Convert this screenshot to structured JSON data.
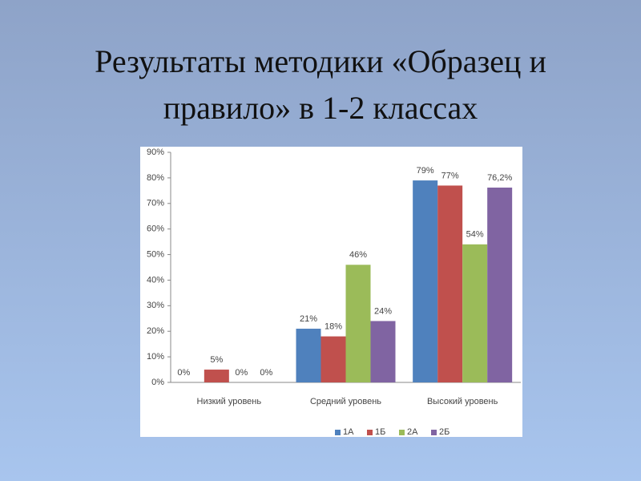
{
  "title": "Результаты методики «Образец и правило» в 1-2 классах",
  "chart_data": {
    "type": "bar",
    "categories": [
      "Низкий уровень",
      "Средний уровень",
      "Высокий уровень"
    ],
    "series": [
      {
        "name": "1А",
        "color": "#4f81bd",
        "values": [
          0,
          21,
          79
        ],
        "value_labels": [
          "0%",
          "21%",
          "79%"
        ]
      },
      {
        "name": "1Б",
        "color": "#c0504d",
        "values": [
          5,
          18,
          77
        ],
        "value_labels": [
          "5%",
          "18%",
          "77%"
        ]
      },
      {
        "name": "2А",
        "color": "#9bbb59",
        "values": [
          0,
          46,
          54
        ],
        "value_labels": [
          "0%",
          "46%",
          "54%"
        ]
      },
      {
        "name": "2Б",
        "color": "#8064a2",
        "values": [
          0,
          24,
          76.2
        ],
        "value_labels": [
          "0%",
          "24%",
          "76,2%"
        ]
      }
    ],
    "ylim": [
      0,
      90
    ],
    "yticks": [
      {
        "value": 0,
        "label": "0%"
      },
      {
        "value": 10,
        "label": "10%"
      },
      {
        "value": 20,
        "label": "20%"
      },
      {
        "value": 30,
        "label": "30%"
      },
      {
        "value": 40,
        "label": "40%"
      },
      {
        "value": 50,
        "label": "50%"
      },
      {
        "value": 60,
        "label": "60%"
      },
      {
        "value": 70,
        "label": "70%"
      },
      {
        "value": 80,
        "label": "80%"
      },
      {
        "value": 90,
        "label": "90%"
      }
    ],
    "legend": "bottom"
  }
}
